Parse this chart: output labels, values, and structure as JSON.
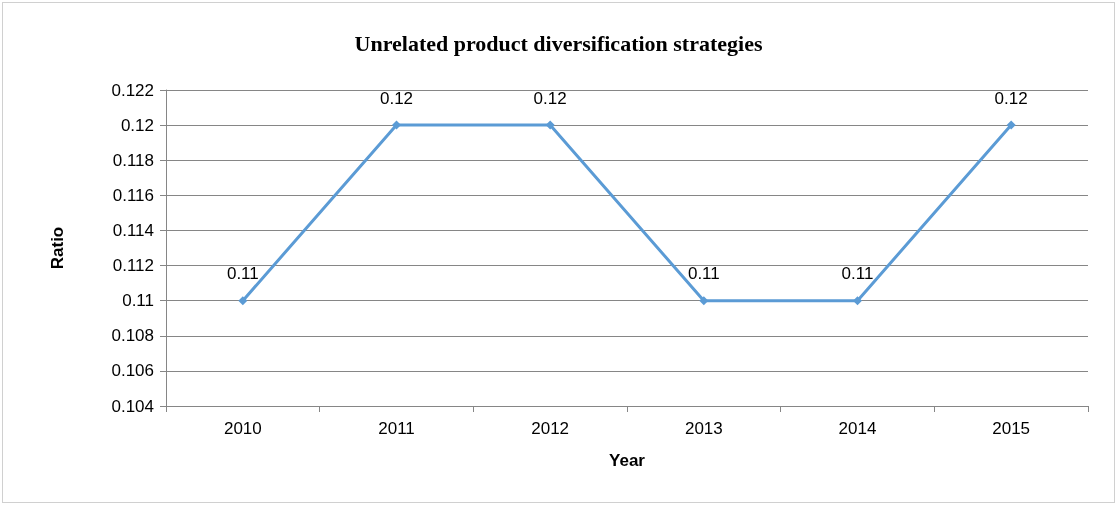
{
  "chart_data": {
    "type": "line",
    "title": "Unrelated product diversification strategies",
    "xlabel": "Year",
    "ylabel": "Ratio",
    "categories": [
      "2010",
      "2011",
      "2012",
      "2013",
      "2014",
      "2015"
    ],
    "series": [
      {
        "color": "#5b9bd5",
        "values": [
          0.11,
          0.12,
          0.12,
          0.11,
          0.11,
          0.12
        ]
      }
    ],
    "ylim": [
      0.104,
      0.122
    ],
    "yticks": [
      0.104,
      0.106,
      0.108,
      0.11,
      0.112,
      0.114,
      0.116,
      0.118,
      0.12,
      0.122
    ],
    "grid": "y",
    "marker": "diamond",
    "line_style": "solid",
    "data_labels": true
  }
}
